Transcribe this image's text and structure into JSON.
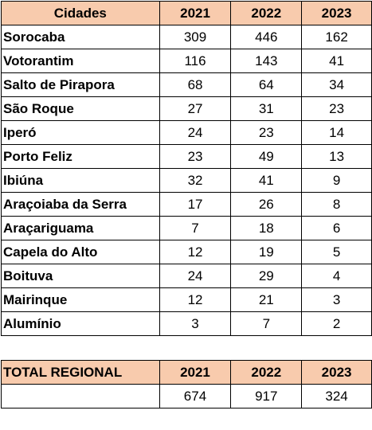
{
  "main_table": {
    "headers": [
      "Cidades",
      "2021",
      "2022",
      "2023"
    ],
    "rows": [
      {
        "city": "Sorocaba",
        "v2021": "309",
        "v2022": "446",
        "v2023": "162"
      },
      {
        "city": "Votorantim",
        "v2021": "116",
        "v2022": "143",
        "v2023": "41"
      },
      {
        "city": "Salto de Pirapora",
        "v2021": "68",
        "v2022": "64",
        "v2023": "34"
      },
      {
        "city": "São Roque",
        "v2021": "27",
        "v2022": "31",
        "v2023": "23"
      },
      {
        "city": "Iperó",
        "v2021": "24",
        "v2022": "23",
        "v2023": "14"
      },
      {
        "city": "Porto Feliz",
        "v2021": "23",
        "v2022": "49",
        "v2023": "13"
      },
      {
        "city": "Ibiúna",
        "v2021": "32",
        "v2022": "41",
        "v2023": "9"
      },
      {
        "city": "Araçoiaba da Serra",
        "v2021": "17",
        "v2022": "26",
        "v2023": "8"
      },
      {
        "city": "Araçariguama",
        "v2021": "7",
        "v2022": "18",
        "v2023": "6"
      },
      {
        "city": "Capela do Alto",
        "v2021": "12",
        "v2022": "19",
        "v2023": "5"
      },
      {
        "city": "Boituva",
        "v2021": "24",
        "v2022": "29",
        "v2023": "4"
      },
      {
        "city": "Mairinque",
        "v2021": "12",
        "v2022": "21",
        "v2023": "3"
      },
      {
        "city": "Alumínio",
        "v2021": "3",
        "v2022": "7",
        "v2023": "2"
      }
    ]
  },
  "total_table": {
    "headers": [
      "TOTAL REGIONAL",
      "2021",
      "2022",
      "2023"
    ],
    "values": [
      "",
      "674",
      "917",
      "324"
    ]
  },
  "colors": {
    "header_bg": "#f8cbad",
    "border": "#000000"
  }
}
